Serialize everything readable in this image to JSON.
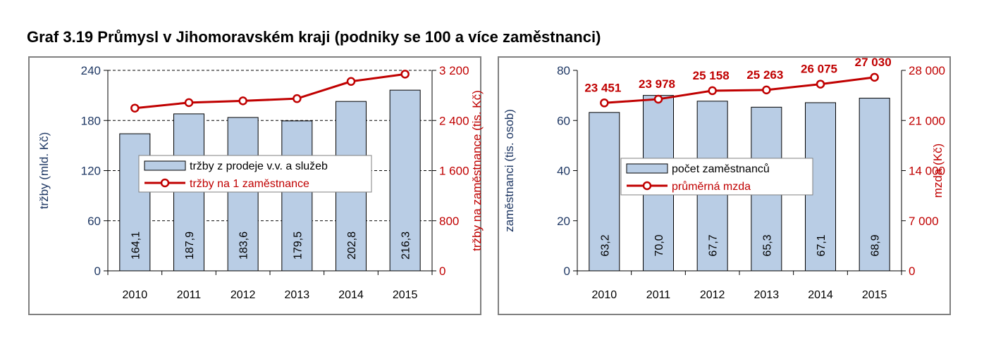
{
  "title": "Graf 3.19 Průmysl v Jihomoravském kraji (podniky se 100 a více zaměstnanci)",
  "colors": {
    "bar": "#b9cde5",
    "bar_stroke": "#000000",
    "line": "#c00000",
    "left_axis_text": "#1f3864",
    "right_axis_text": "#c00000",
    "frame": "#808080"
  },
  "chart_data": [
    {
      "type": "bar",
      "categories": [
        "2010",
        "2011",
        "2012",
        "2013",
        "2014",
        "2015"
      ],
      "series": [
        {
          "name": "tržby z prodeje v.v. a služeb",
          "type": "bar",
          "axis": "left",
          "values": [
            164.1,
            187.9,
            183.6,
            179.5,
            202.8,
            216.3
          ],
          "labels": [
            "164,1",
            "187,9",
            "183,6",
            "179,5",
            "202,8",
            "216,3"
          ]
        },
        {
          "name": "tržby na 1 zaměstnance",
          "type": "line",
          "axis": "right",
          "values": [
            2597,
            2685,
            2713,
            2749,
            3023,
            3140
          ]
        }
      ],
      "ylabel": "tržby (mld. Kč)",
      "ylim": [
        0,
        240
      ],
      "yticks": [
        "0",
        "60",
        "120",
        "180",
        "240"
      ],
      "y2label": "tržby na zaměstnance (tis. Kč)",
      "y2lim": [
        0,
        3200
      ],
      "y2ticks": [
        "0",
        "800",
        "1 600",
        "2 400",
        "3 200"
      ],
      "grid": true,
      "legend": "center"
    },
    {
      "type": "bar",
      "categories": [
        "2010",
        "2011",
        "2012",
        "2013",
        "2014",
        "2015"
      ],
      "series": [
        {
          "name": "počet zaměstnanců",
          "type": "bar",
          "axis": "left",
          "values": [
            63.2,
            70.0,
            67.7,
            65.3,
            67.1,
            68.9
          ],
          "labels": [
            "63,2",
            "70,0",
            "67,7",
            "65,3",
            "67,1",
            "68,9"
          ]
        },
        {
          "name": "průměrná mzda",
          "type": "line",
          "axis": "right",
          "values": [
            23451,
            23978,
            25158,
            25263,
            26075,
            27030
          ],
          "labels": [
            "23 451",
            "23 978",
            "25 158",
            "25 263",
            "26 075",
            "27 030"
          ]
        }
      ],
      "ylabel": "zaměstnanci (tis. osob)",
      "ylim": [
        0,
        80
      ],
      "yticks": [
        "0",
        "20",
        "40",
        "60",
        "80"
      ],
      "y2label": "mzda (Kč)",
      "y2lim": [
        0,
        28000
      ],
      "y2ticks": [
        "0",
        "7 000",
        "14 000",
        "21 000",
        "28 000"
      ],
      "grid": false,
      "legend": "center"
    }
  ]
}
